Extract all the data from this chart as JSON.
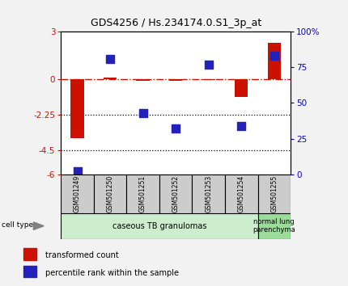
{
  "title": "GDS4256 / Hs.234174.0.S1_3p_at",
  "samples": [
    "GSM501249",
    "GSM501250",
    "GSM501251",
    "GSM501252",
    "GSM501253",
    "GSM501254",
    "GSM501255"
  ],
  "red_values": [
    -3.7,
    0.12,
    -0.08,
    -0.12,
    -0.05,
    -1.1,
    2.3
  ],
  "blue_values_pct": [
    2,
    81,
    43,
    32,
    77,
    34,
    83
  ],
  "ylim_left": [
    -6,
    3
  ],
  "ylim_right": [
    0,
    100
  ],
  "yticks_left": [
    -6,
    -4.5,
    -2.25,
    0,
    3
  ],
  "ytick_labels_left": [
    "-6",
    "-4.5",
    "-2.25",
    "0",
    "3"
  ],
  "yticks_right": [
    0,
    25,
    50,
    75,
    100
  ],
  "ytick_labels_right": [
    "0",
    "25",
    "50",
    "75",
    "100%"
  ],
  "hlines": [
    -2.25,
    -4.5
  ],
  "red_color": "#CC1100",
  "blue_color": "#2222BB",
  "dashed_line_color": "#CC1100",
  "red_bar_width": 0.4,
  "blue_marker_size": 60,
  "group1_label": "caseous TB granulomas",
  "group2_label": "normal lung\nparenchyma",
  "group1_indices": [
    0,
    1,
    2,
    3,
    4,
    5
  ],
  "group2_indices": [
    6
  ],
  "cell_type_label": "cell type",
  "legend_red": "transformed count",
  "legend_blue": "percentile rank within the sample",
  "plot_bg": "#ffffff",
  "group_bg1": "#cceecc",
  "group_bg2": "#99dd99",
  "sample_bg": "#cccccc",
  "fig_bg": "#f2f2f2",
  "left_label_color": "#CC1100",
  "right_label_color": "#0000CC"
}
